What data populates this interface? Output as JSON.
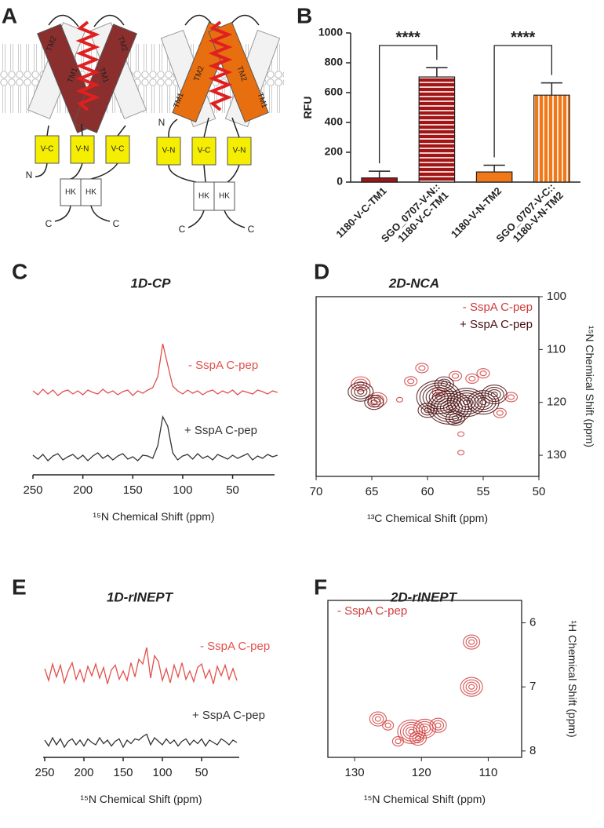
{
  "diagram": {
    "panel": "A",
    "labels": [
      "TM2",
      "TM1",
      "TM1",
      "TM2",
      "V-C",
      "V-N",
      "V-C",
      "N",
      "HK",
      "HK",
      "C",
      "C",
      "TM2",
      "TM2",
      "TM1",
      "TM1",
      "N",
      "V-N",
      "V-C",
      "V-N",
      "HK",
      "HK",
      "C",
      "C"
    ]
  },
  "chart_data": [
    {
      "panel": "B",
      "type": "bar",
      "ylabel": "RFU",
      "categories": [
        "1180-V-C-TM1",
        "SGO_0707-V-N::\n1180-V-C-TM1",
        "1180-V-N-TM2",
        "SGO_0707-V-C::\n1180-V-N-TM2"
      ],
      "values": [
        28,
        705,
        68,
        583
      ],
      "errors": [
        45,
        62,
        45,
        82
      ],
      "colors": [
        "#a31515",
        "#a31515",
        "#f07818",
        "#f07818"
      ],
      "patterns": [
        "solid",
        "horizontal",
        "solid",
        "vertical"
      ],
      "ylim": [
        0,
        1000
      ],
      "yticks": [
        0,
        200,
        400,
        600,
        800,
        1000
      ],
      "annotations": [
        {
          "text": "****",
          "between": [
            "1180-V-C-TM1",
            "SGO_0707-V-N::\n1180-V-C-TM1"
          ]
        },
        {
          "text": "****",
          "between": [
            "1180-V-N-TM2",
            "SGO_0707-V-C::\n1180-V-N-TM2"
          ]
        }
      ]
    },
    {
      "panel": "C",
      "type": "line",
      "title": "1D-CP",
      "xlabel": "¹⁵N Chemical Shift (ppm)",
      "xlim": [
        250,
        8
      ],
      "xticks": [
        250,
        200,
        150,
        100,
        50
      ],
      "x": [
        250,
        245,
        240,
        235,
        230,
        225,
        220,
        215,
        210,
        205,
        200,
        195,
        190,
        185,
        180,
        175,
        170,
        165,
        160,
        155,
        150,
        145,
        140,
        135,
        130,
        125,
        120,
        115,
        110,
        105,
        100,
        95,
        90,
        85,
        80,
        75,
        70,
        65,
        60,
        55,
        50,
        45,
        40,
        35,
        30,
        25,
        20,
        15,
        10,
        5
      ],
      "series": [
        {
          "name": "- SspA C-pep",
          "color": "#e0504a",
          "values": [
            2,
            -3,
            4,
            -2,
            3,
            -4,
            1,
            3,
            -2,
            2,
            -3,
            3,
            0,
            -2,
            4,
            -1,
            2,
            -3,
            1,
            3,
            -4,
            2,
            -1,
            3,
            6,
            20,
            62,
            35,
            8,
            2,
            -2,
            3,
            -1,
            2,
            -3,
            1,
            3,
            -2,
            2,
            -1,
            3,
            -3,
            2,
            0,
            -2,
            3,
            1,
            -2,
            2,
            0
          ]
        },
        {
          "name": "+ SspA C-pep",
          "color": "#333333",
          "values": [
            3,
            -2,
            4,
            -4,
            2,
            5,
            -3,
            1,
            4,
            -2,
            3,
            -4,
            2,
            6,
            -1,
            3,
            -3,
            2,
            5,
            -2,
            1,
            -4,
            3,
            2,
            -1,
            15,
            52,
            40,
            6,
            -3,
            2,
            4,
            -2,
            5,
            -1,
            2,
            -3,
            4,
            1,
            -2,
            3,
            -1,
            2,
            5,
            -3,
            2,
            -1,
            4,
            1,
            3
          ]
        }
      ]
    },
    {
      "panel": "D",
      "type": "contour",
      "title": "2D-NCA",
      "xlabel": "¹³C Chemical Shift (ppm)",
      "ylabel": "¹⁵N Chemical Shift (ppm)",
      "xlim": [
        70,
        50
      ],
      "ylim": [
        134,
        100
      ],
      "xticks": [
        70,
        65,
        60,
        55,
        50
      ],
      "yticks": [
        100,
        110,
        120,
        130
      ],
      "legend": "upper right",
      "series": [
        {
          "name": "- SspA C-pep",
          "color": "#d03a3a",
          "x": [
            66,
            64.5,
            61.5,
            60.5,
            59,
            57.5,
            56,
            55,
            53.5,
            57,
            57,
            52.5,
            62.5
          ],
          "y": [
            116.5,
            119.5,
            116,
            113.5,
            118,
            115,
            115.5,
            114.5,
            122,
            126,
            129.5,
            119,
            119.5
          ],
          "levels": [
            3,
            3,
            2,
            2,
            2,
            2,
            2,
            2,
            2,
            1,
            1,
            2,
            1
          ]
        },
        {
          "name": "+ SspA C-pep",
          "color": "#4a0f0f",
          "x": [
            66,
            64.8,
            59,
            58,
            56.5,
            55,
            54,
            57.5,
            58.5,
            60
          ],
          "y": [
            118,
            120,
            119,
            121,
            120,
            120,
            118.5,
            123,
            116.5,
            121.5
          ],
          "levels": [
            4,
            3,
            7,
            7,
            6,
            5,
            4,
            3,
            3,
            3
          ]
        }
      ]
    },
    {
      "panel": "E",
      "type": "line",
      "title": "1D-rINEPT",
      "xlabel": "¹⁵N Chemical Shift (ppm)",
      "xlim": [
        252,
        2
      ],
      "xticks": [
        250,
        200,
        150,
        100,
        50
      ],
      "x": [
        250,
        245,
        240,
        235,
        230,
        225,
        220,
        215,
        210,
        205,
        200,
        195,
        190,
        185,
        180,
        175,
        170,
        165,
        160,
        155,
        150,
        145,
        140,
        135,
        130,
        125,
        120,
        115,
        110,
        105,
        100,
        95,
        90,
        85,
        80,
        75,
        70,
        65,
        60,
        55,
        50,
        45,
        40,
        35,
        30,
        25,
        20,
        15,
        10,
        5
      ],
      "series": [
        {
          "name": "- SspA C-pep",
          "color": "#e0504a",
          "values": [
            4,
            -6,
            8,
            -3,
            7,
            -8,
            2,
            9,
            -5,
            3,
            -7,
            6,
            -2,
            8,
            -4,
            5,
            -9,
            3,
            7,
            -5,
            2,
            -6,
            9,
            -3,
            12,
            8,
            22,
            -4,
            15,
            10,
            -6,
            4,
            -8,
            7,
            -3,
            9,
            -5,
            2,
            -7,
            5,
            8,
            -4,
            3,
            -9,
            6,
            -2,
            7,
            -5,
            4,
            -6
          ]
        },
        {
          "name": "+ SspA C-pep",
          "color": "#333333",
          "values": [
            2,
            -3,
            4,
            -2,
            3,
            -4,
            1,
            3,
            -2,
            2,
            -3,
            3,
            0,
            -2,
            4,
            -1,
            2,
            -3,
            1,
            3,
            -4,
            2,
            -1,
            3,
            2,
            5,
            7,
            -2,
            4,
            1,
            -2,
            3,
            -1,
            2,
            -3,
            1,
            3,
            -2,
            2,
            -1,
            3,
            -3,
            2,
            0,
            -2,
            3,
            1,
            -2,
            2,
            0
          ]
        }
      ]
    },
    {
      "panel": "F",
      "type": "contour",
      "title": "2D-rINEPT",
      "xlabel": "¹⁵N Chemical Shift (ppm)",
      "ylabel": "¹H Chemical Shift (ppm)",
      "xlim": [
        134,
        105
      ],
      "ylim": [
        8.1,
        5.65
      ],
      "xticks": [
        130,
        120,
        110
      ],
      "yticks": [
        6,
        7,
        8
      ],
      "legend": "upper left",
      "series": [
        {
          "name": "- SspA C-pep",
          "color": "#d03a3a",
          "x": [
            112.5,
            112.5,
            126.5,
            125,
            121.5,
            119.5,
            117.5,
            123.5,
            120.5
          ],
          "y": [
            6.3,
            7.0,
            7.5,
            7.6,
            7.7,
            7.65,
            7.6,
            7.85,
            7.8
          ],
          "levels": [
            3,
            4,
            3,
            2,
            5,
            4,
            3,
            2,
            3
          ]
        }
      ]
    }
  ]
}
